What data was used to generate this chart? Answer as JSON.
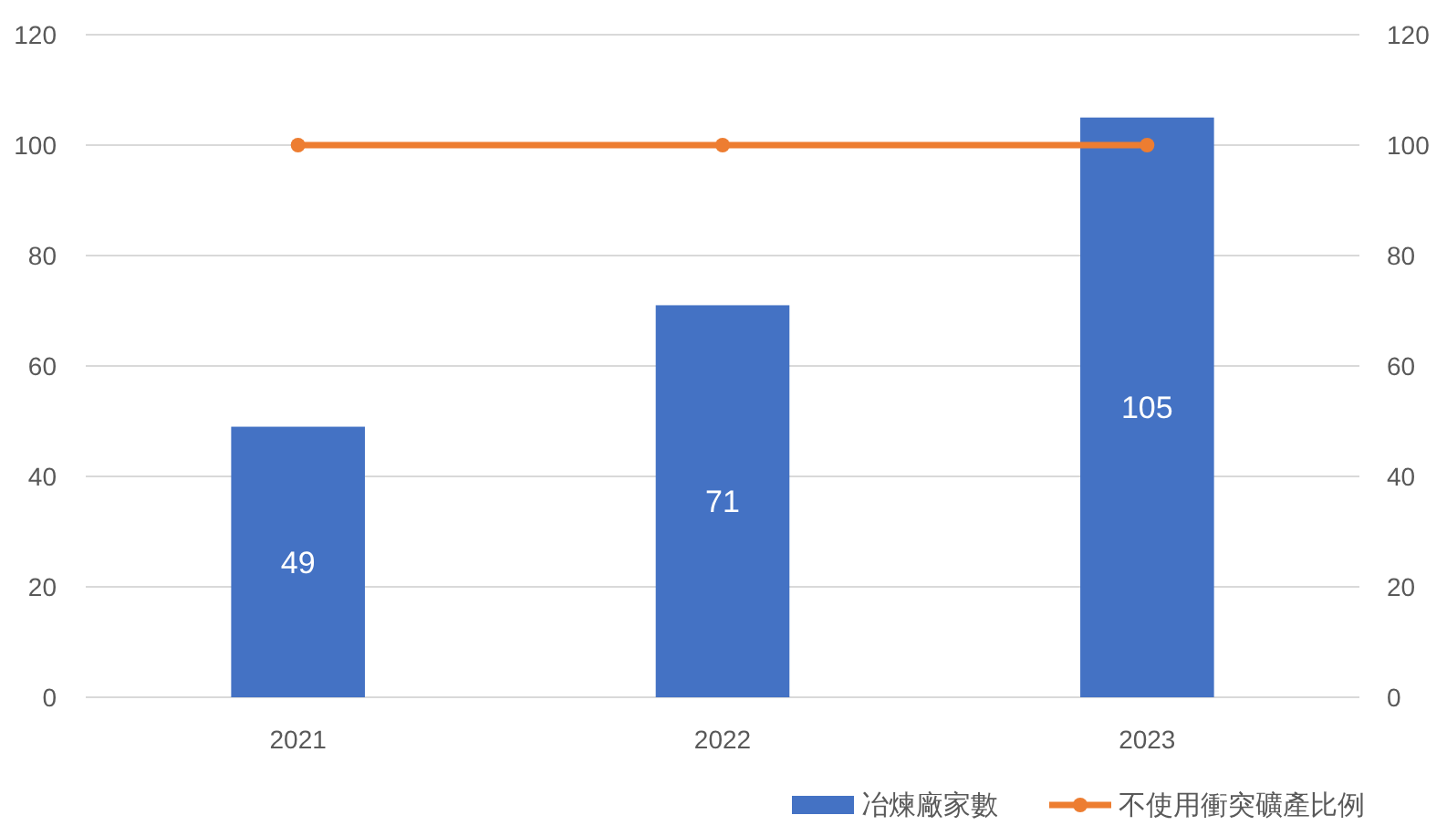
{
  "chart_data": {
    "type": "bar",
    "categories": [
      "2021",
      "2022",
      "2023"
    ],
    "series": [
      {
        "name": "冶煉廠家數",
        "color": "#4472c4",
        "values": [
          49,
          71,
          105
        ],
        "value_labels": [
          "49",
          "71",
          "105"
        ]
      },
      {
        "name": "不使用衝突礦產比例",
        "type": "line",
        "axis": "y2",
        "color": "#ed7d31",
        "values": [
          100,
          100,
          100
        ],
        "marker": "circle"
      }
    ],
    "ylim": [
      0,
      120
    ],
    "yticks": [
      0,
      20,
      40,
      60,
      80,
      100,
      120
    ],
    "y2lim": [
      0,
      120
    ],
    "y2ticks": [
      0,
      20,
      40,
      60,
      80,
      100,
      120
    ],
    "grid": "y",
    "legend": "bottom right"
  }
}
